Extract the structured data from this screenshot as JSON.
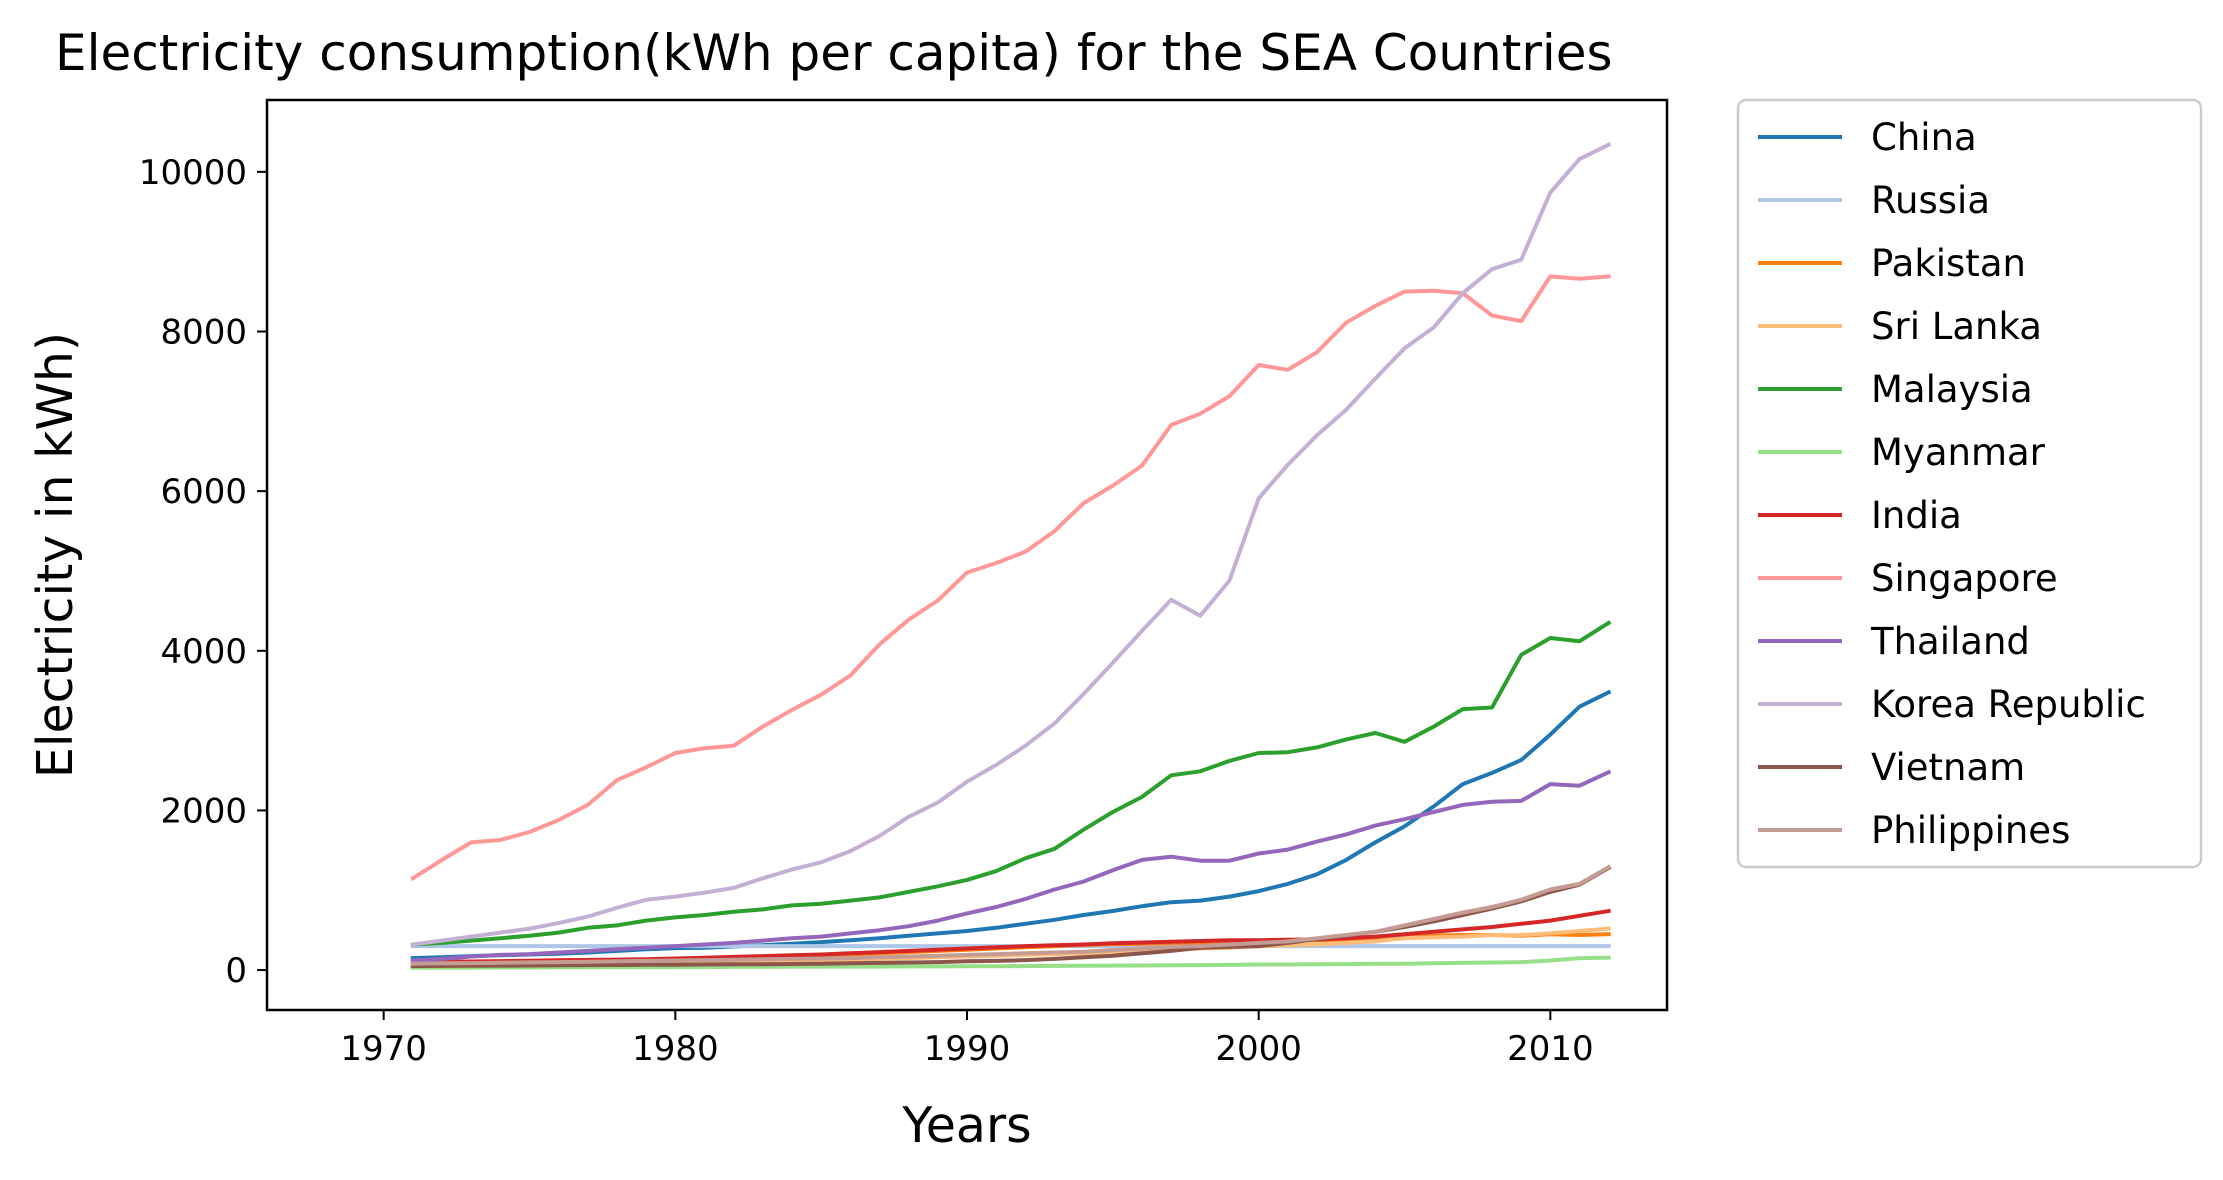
{
  "chart_data": {
    "type": "line",
    "title": "Electricity consumption(kWh per capita) for the SEA Countries",
    "xlabel": "Years",
    "ylabel": "Electricity in kWh)",
    "xlim": [
      1966,
      2014
    ],
    "ylim": [
      -500,
      10900
    ],
    "xticks": [
      1970,
      1980,
      1990,
      2000,
      2010
    ],
    "yticks": [
      0,
      2000,
      4000,
      6000,
      8000,
      10000
    ],
    "grid": false,
    "legend_position": "outside-right",
    "x": [
      1971,
      1972,
      1973,
      1974,
      1975,
      1976,
      1977,
      1978,
      1979,
      1980,
      1981,
      1982,
      1983,
      1984,
      1985,
      1986,
      1987,
      1988,
      1989,
      1990,
      1991,
      1992,
      1993,
      1994,
      1995,
      1996,
      1997,
      1998,
      1999,
      2000,
      2001,
      2002,
      2003,
      2004,
      2005,
      2006,
      2007,
      2008,
      2009,
      2010,
      2011,
      2012
    ],
    "series": [
      {
        "name": "China",
        "color": "#1f77b4",
        "values": [
          150,
          160,
          175,
          185,
          195,
          205,
          220,
          240,
          260,
          275,
          280,
          295,
          310,
          330,
          350,
          375,
          400,
          430,
          460,
          490,
          530,
          580,
          630,
          690,
          740,
          800,
          850,
          870,
          920,
          990,
          1080,
          1200,
          1380,
          1600,
          1800,
          2050,
          2330,
          2470,
          2630,
          2950,
          3300,
          3480
        ]
      },
      {
        "name": "Russia",
        "color": "#aec7e8",
        "values": [
          300,
          300,
          300,
          300,
          300,
          300,
          300,
          300,
          300,
          300,
          300,
          300,
          300,
          300,
          300,
          300,
          300,
          300,
          300,
          300,
          300,
          300,
          300,
          300,
          300,
          300,
          300,
          300,
          300,
          300,
          300,
          300,
          300,
          300,
          300,
          300,
          300,
          300,
          300,
          300,
          300,
          300
        ]
      },
      {
        "name": "Pakistan",
        "color": "#ff7f0e",
        "values": [
          80,
          85,
          90,
          95,
          100,
          105,
          110,
          115,
          120,
          130,
          140,
          150,
          160,
          170,
          180,
          195,
          210,
          225,
          240,
          255,
          270,
          285,
          300,
          315,
          325,
          330,
          340,
          345,
          355,
          365,
          370,
          375,
          385,
          400,
          420,
          430,
          440,
          440,
          430,
          450,
          440,
          450
        ]
      },
      {
        "name": "Sri Lanka",
        "color": "#ffbb78",
        "values": [
          60,
          62,
          64,
          66,
          68,
          72,
          76,
          80,
          85,
          90,
          95,
          100,
          110,
          115,
          120,
          130,
          140,
          150,
          160,
          170,
          180,
          190,
          200,
          210,
          230,
          240,
          260,
          270,
          280,
          300,
          310,
          320,
          340,
          360,
          400,
          410,
          420,
          440,
          440,
          460,
          490,
          520
        ]
      },
      {
        "name": "Malaysia",
        "color": "#2ca02c",
        "values": [
          320,
          340,
          370,
          400,
          430,
          470,
          530,
          560,
          620,
          660,
          690,
          730,
          760,
          810,
          830,
          870,
          910,
          980,
          1050,
          1130,
          1240,
          1400,
          1520,
          1760,
          1980,
          2170,
          2440,
          2490,
          2620,
          2720,
          2730,
          2790,
          2890,
          2970,
          2860,
          3050,
          3270,
          3290,
          3950,
          4160,
          4120,
          4350
        ]
      },
      {
        "name": "Myanmar",
        "color": "#98df8a",
        "values": [
          30,
          30,
          30,
          32,
          32,
          34,
          34,
          36,
          36,
          38,
          38,
          40,
          40,
          42,
          42,
          44,
          44,
          46,
          46,
          48,
          48,
          50,
          52,
          54,
          56,
          58,
          60,
          62,
          65,
          70,
          70,
          72,
          75,
          80,
          80,
          85,
          90,
          95,
          100,
          120,
          150,
          155
        ]
      },
      {
        "name": "India",
        "color": "#d62728",
        "values": [
          100,
          105,
          108,
          112,
          118,
          122,
          128,
          132,
          135,
          145,
          155,
          165,
          175,
          185,
          195,
          210,
          225,
          240,
          255,
          270,
          285,
          300,
          310,
          320,
          335,
          345,
          355,
          365,
          375,
          375,
          380,
          385,
          400,
          420,
          450,
          480,
          510,
          540,
          580,
          620,
          680,
          740
        ]
      },
      {
        "name": "Singapore",
        "color": "#ff9896",
        "values": [
          1150,
          1380,
          1600,
          1630,
          1730,
          1880,
          2070,
          2380,
          2540,
          2720,
          2780,
          2810,
          3050,
          3260,
          3450,
          3690,
          4080,
          4390,
          4630,
          4980,
          5100,
          5240,
          5500,
          5850,
          6070,
          6320,
          6830,
          6970,
          7190,
          7580,
          7520,
          7740,
          8110,
          8320,
          8500,
          8510,
          8480,
          8200,
          8130,
          8690,
          8660,
          8690
        ]
      },
      {
        "name": "Thailand",
        "color": "#9467bd",
        "values": [
          120,
          140,
          170,
          190,
          200,
          220,
          240,
          260,
          280,
          300,
          320,
          340,
          370,
          400,
          420,
          460,
          500,
          550,
          620,
          710,
          790,
          890,
          1010,
          1110,
          1250,
          1380,
          1420,
          1370,
          1370,
          1460,
          1510,
          1610,
          1700,
          1810,
          1890,
          1980,
          2070,
          2110,
          2120,
          2330,
          2310,
          2480
        ]
      },
      {
        "name": "Korea Republic",
        "color": "#c5b0d5",
        "values": [
          320,
          370,
          420,
          470,
          520,
          590,
          670,
          780,
          880,
          920,
          970,
          1030,
          1150,
          1260,
          1350,
          1490,
          1680,
          1920,
          2100,
          2360,
          2570,
          2810,
          3090,
          3460,
          3850,
          4250,
          4640,
          4440,
          4880,
          5910,
          6330,
          6700,
          7020,
          7410,
          7790,
          8050,
          8480,
          8780,
          8900,
          9740,
          10160,
          10340
        ]
      },
      {
        "name": "Vietnam",
        "color": "#8c564b",
        "values": [
          50,
          52,
          54,
          56,
          58,
          60,
          62,
          64,
          66,
          68,
          70,
          72,
          74,
          76,
          80,
          85,
          90,
          95,
          100,
          110,
          115,
          125,
          140,
          160,
          180,
          210,
          240,
          280,
          290,
          300,
          340,
          390,
          430,
          480,
          540,
          610,
          690,
          770,
          860,
          980,
          1070,
          1280
        ]
      },
      {
        "name": "Philippines",
        "color": "#c49c94",
        "values": [
          80,
          85,
          88,
          92,
          96,
          100,
          105,
          110,
          115,
          120,
          125,
          130,
          135,
          140,
          145,
          150,
          160,
          170,
          180,
          190,
          200,
          210,
          220,
          230,
          250,
          270,
          290,
          300,
          320,
          340,
          360,
          400,
          440,
          480,
          560,
          640,
          720,
          790,
          880,
          1010,
          1080,
          1290
        ]
      }
    ]
  }
}
